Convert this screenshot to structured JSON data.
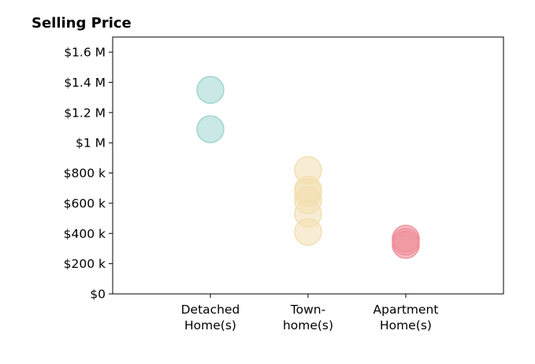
{
  "chart_data": {
    "type": "scatter",
    "title": "Selling Price",
    "xlabel": "",
    "ylabel": "",
    "categories": [
      [
        "Detached",
        "Home(s)"
      ],
      [
        "Town-",
        "home(s)"
      ],
      [
        "Apartment",
        "Home(s)"
      ]
    ],
    "ylim": [
      0,
      1700000
    ],
    "y_ticks": [
      {
        "value": 0,
        "label": "$0"
      },
      {
        "value": 200000,
        "label": "$200 k"
      },
      {
        "value": 400000,
        "label": "$400 k"
      },
      {
        "value": 600000,
        "label": "$600 k"
      },
      {
        "value": 800000,
        "label": "$800 k"
      },
      {
        "value": 1000000,
        "label": "$1 M"
      },
      {
        "value": 1200000,
        "label": "$1.2 M"
      },
      {
        "value": 1400000,
        "label": "$1.4 M"
      },
      {
        "value": 1600000,
        "label": "$1.6 M"
      }
    ],
    "grid": false,
    "series": [
      {
        "category_index": 0,
        "color": "#9fd6cf",
        "values": [
          1350000,
          1090000
        ]
      },
      {
        "category_index": 1,
        "color": "#f3dfb0",
        "values": [
          820000,
          690000,
          670000,
          620000,
          530000,
          410000
        ]
      },
      {
        "category_index": 2,
        "color": "#ef8f9a",
        "values": [
          365000,
          345000,
          325000
        ]
      }
    ]
  }
}
